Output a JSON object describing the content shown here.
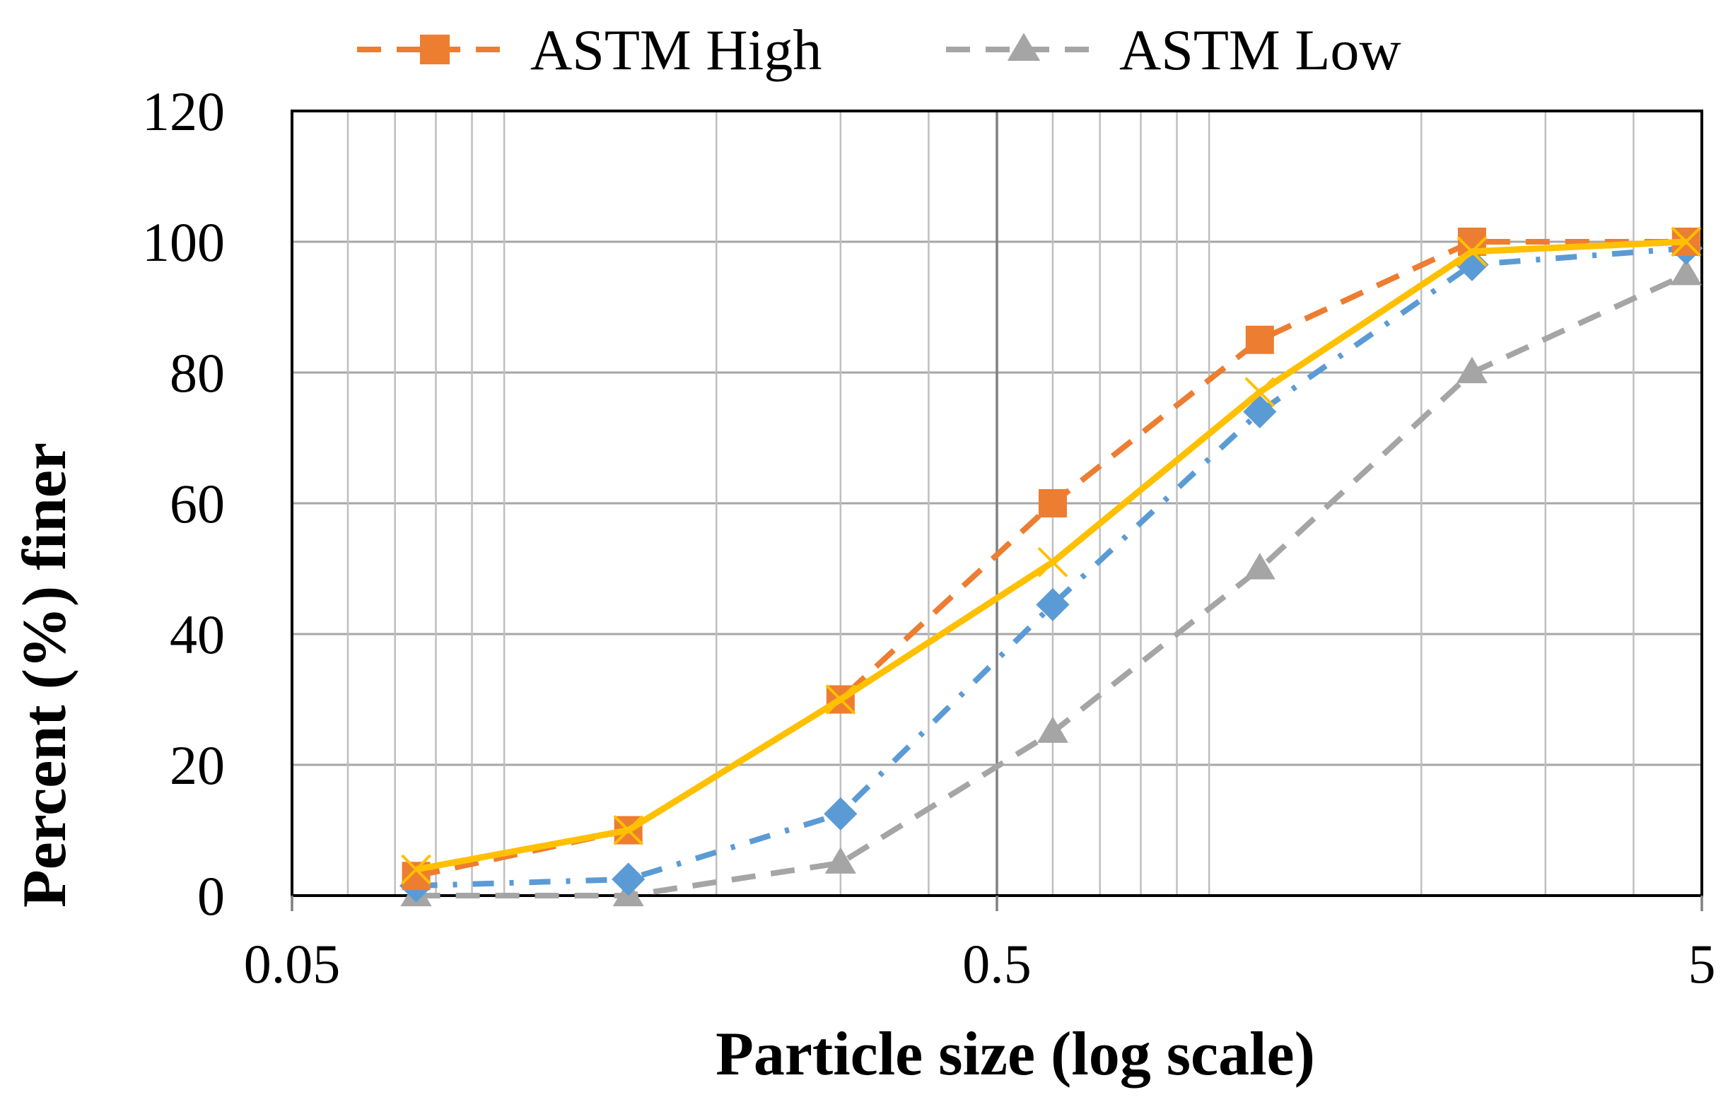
{
  "chart_data": {
    "type": "line",
    "xscale": "log",
    "xlim": [
      0.05,
      5
    ],
    "ylim": [
      0,
      120
    ],
    "xticks": [
      "0.05",
      "0.5",
      "5"
    ],
    "yticks": [
      "0",
      "20",
      "40",
      "60",
      "80",
      "100",
      "120"
    ],
    "xlabel": "Particle size (log scale)",
    "ylabel": "Percent (%) finer",
    "grid": true,
    "legend_position": "top",
    "series": [
      {
        "name": "ASTM High",
        "color": "#ED7D31",
        "line_style": "dashed",
        "marker": "square",
        "in_legend": true,
        "x": [
          0.075,
          0.15,
          0.3,
          0.6,
          1.18,
          2.36,
          4.75
        ],
        "y": [
          3,
          10,
          30,
          60,
          85,
          100,
          100
        ]
      },
      {
        "name": "ASTM Low",
        "color": "#A5A5A5",
        "line_style": "dashed",
        "marker": "triangle",
        "in_legend": true,
        "x": [
          0.075,
          0.15,
          0.3,
          0.6,
          1.18,
          2.36,
          4.75
        ],
        "y": [
          0,
          0,
          5,
          25,
          50,
          80,
          95
        ]
      },
      {
        "color": "#5B9BD5",
        "line_style": "dash-dot",
        "marker": "diamond",
        "in_legend": false,
        "x": [
          0.075,
          0.15,
          0.3,
          0.6,
          1.18,
          2.36,
          4.75
        ],
        "y": [
          1.5,
          2.5,
          12.5,
          44.5,
          74,
          96.5,
          99
        ]
      },
      {
        "color": "#FFC000",
        "line_style": "solid",
        "marker": "x",
        "in_legend": false,
        "x": [
          0.075,
          0.15,
          0.3,
          0.6,
          1.18,
          2.36,
          4.75
        ],
        "y": [
          4,
          10,
          30,
          51,
          77,
          98.5,
          100
        ]
      }
    ]
  }
}
